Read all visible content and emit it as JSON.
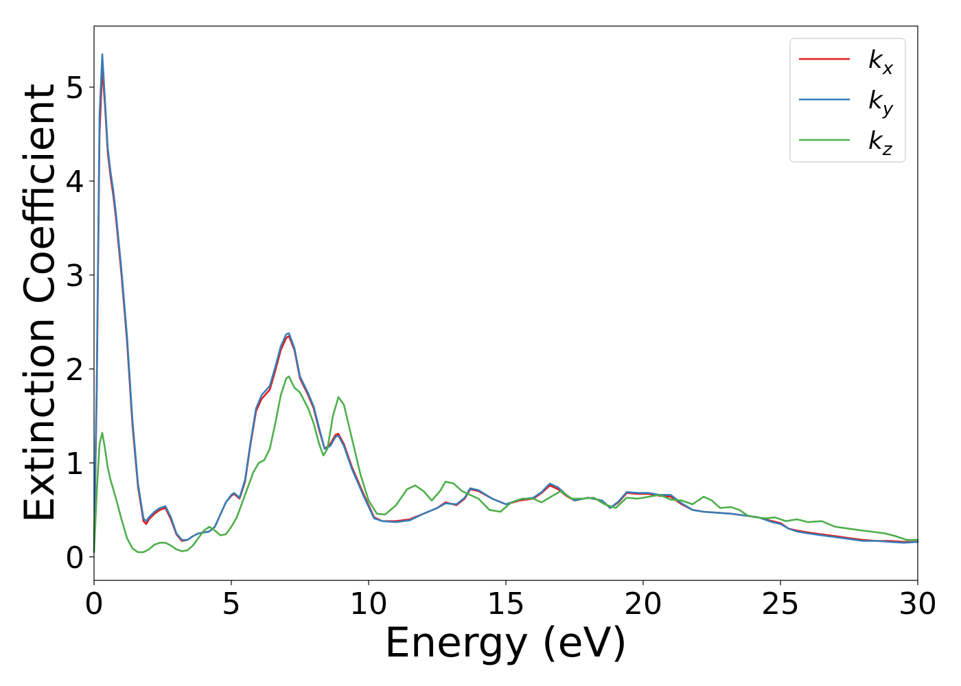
{
  "chart_data": {
    "type": "line",
    "title": "",
    "xlabel": "Energy (eV)",
    "ylabel": "Extinction Coefficient",
    "xlim": [
      0,
      30
    ],
    "ylim": [
      -0.25,
      5.65
    ],
    "xticks": [
      0,
      5,
      10,
      15,
      20,
      25,
      30
    ],
    "yticks": [
      0,
      1,
      2,
      3,
      4,
      5
    ],
    "grid": false,
    "legend_position": "top-right",
    "series": [
      {
        "name": "k_x",
        "label_main": "k",
        "label_sub": "x",
        "color": "#e41a1c",
        "x": [
          0,
          0.1,
          0.2,
          0.3,
          0.4,
          0.5,
          0.6,
          0.7,
          0.8,
          0.9,
          1.0,
          1.2,
          1.4,
          1.6,
          1.8,
          1.9,
          2.0,
          2.2,
          2.4,
          2.6,
          2.8,
          3.0,
          3.2,
          3.4,
          3.6,
          3.8,
          4.0,
          4.2,
          4.4,
          4.6,
          4.8,
          5.0,
          5.1,
          5.3,
          5.5,
          5.7,
          5.9,
          6.1,
          6.4,
          6.6,
          6.8,
          7.0,
          7.1,
          7.3,
          7.5,
          7.8,
          8.0,
          8.2,
          8.4,
          8.6,
          8.8,
          8.9,
          9.1,
          9.4,
          9.8,
          10.2,
          10.5,
          11.0,
          11.5,
          12.0,
          12.5,
          12.8,
          13.2,
          13.5,
          13.7,
          14.0,
          14.5,
          15.0,
          15.5,
          16.0,
          16.3,
          16.6,
          16.9,
          17.2,
          17.5,
          18.0,
          18.5,
          18.8,
          19.1,
          19.4,
          19.8,
          20.2,
          20.6,
          21.0,
          21.4,
          21.8,
          22.2,
          22.7,
          23.2,
          23.7,
          24.2,
          24.7,
          25.0,
          25.3,
          25.6,
          26.0,
          26.5,
          27.0,
          27.5,
          28.0,
          28.5,
          29.0,
          29.5,
          30.0
        ],
        "y": [
          0.05,
          1.8,
          4.5,
          5.2,
          4.8,
          4.3,
          4.05,
          3.85,
          3.6,
          3.3,
          3.0,
          2.3,
          1.4,
          0.75,
          0.38,
          0.35,
          0.4,
          0.46,
          0.5,
          0.52,
          0.4,
          0.24,
          0.17,
          0.18,
          0.22,
          0.25,
          0.26,
          0.27,
          0.32,
          0.45,
          0.58,
          0.65,
          0.67,
          0.62,
          0.8,
          1.2,
          1.55,
          1.68,
          1.78,
          1.98,
          2.2,
          2.33,
          2.35,
          2.2,
          1.9,
          1.72,
          1.58,
          1.35,
          1.15,
          1.2,
          1.3,
          1.31,
          1.2,
          0.95,
          0.68,
          0.42,
          0.38,
          0.38,
          0.4,
          0.46,
          0.52,
          0.58,
          0.55,
          0.62,
          0.72,
          0.7,
          0.62,
          0.56,
          0.6,
          0.62,
          0.68,
          0.76,
          0.72,
          0.65,
          0.6,
          0.63,
          0.6,
          0.52,
          0.58,
          0.68,
          0.67,
          0.67,
          0.65,
          0.64,
          0.56,
          0.5,
          0.48,
          0.47,
          0.46,
          0.44,
          0.42,
          0.38,
          0.36,
          0.3,
          0.28,
          0.26,
          0.24,
          0.22,
          0.2,
          0.18,
          0.17,
          0.17,
          0.16,
          0.16
        ]
      },
      {
        "name": "k_y",
        "label_main": "k",
        "label_sub": "y",
        "color": "#377eb8",
        "x": [
          0,
          0.1,
          0.2,
          0.3,
          0.4,
          0.5,
          0.6,
          0.7,
          0.8,
          0.9,
          1.0,
          1.2,
          1.4,
          1.6,
          1.8,
          1.9,
          2.0,
          2.2,
          2.4,
          2.6,
          2.8,
          3.0,
          3.2,
          3.4,
          3.6,
          3.8,
          4.0,
          4.2,
          4.4,
          4.6,
          4.8,
          5.0,
          5.1,
          5.3,
          5.5,
          5.7,
          5.9,
          6.1,
          6.4,
          6.6,
          6.8,
          7.0,
          7.1,
          7.3,
          7.5,
          7.8,
          8.0,
          8.2,
          8.4,
          8.6,
          8.8,
          8.9,
          9.1,
          9.4,
          9.8,
          10.2,
          10.5,
          11.0,
          11.5,
          12.0,
          12.5,
          12.8,
          13.2,
          13.5,
          13.7,
          14.0,
          14.5,
          15.0,
          15.5,
          16.0,
          16.3,
          16.6,
          16.9,
          17.2,
          17.5,
          18.0,
          18.5,
          18.8,
          19.1,
          19.4,
          19.8,
          20.2,
          20.6,
          21.0,
          21.4,
          21.8,
          22.2,
          22.7,
          23.2,
          23.7,
          24.2,
          24.7,
          25.0,
          25.3,
          25.6,
          26.0,
          26.5,
          27.0,
          27.5,
          28.0,
          28.5,
          29.0,
          29.5,
          30.0
        ],
        "y": [
          0.05,
          1.9,
          4.7,
          5.35,
          4.85,
          4.35,
          4.1,
          3.9,
          3.65,
          3.35,
          3.05,
          2.35,
          1.45,
          0.78,
          0.41,
          0.38,
          0.42,
          0.48,
          0.52,
          0.54,
          0.42,
          0.25,
          0.18,
          0.18,
          0.22,
          0.25,
          0.26,
          0.27,
          0.32,
          0.45,
          0.58,
          0.66,
          0.68,
          0.63,
          0.82,
          1.22,
          1.58,
          1.72,
          1.82,
          2.02,
          2.24,
          2.37,
          2.38,
          2.22,
          1.92,
          1.74,
          1.6,
          1.37,
          1.15,
          1.18,
          1.28,
          1.29,
          1.18,
          0.93,
          0.66,
          0.41,
          0.38,
          0.37,
          0.39,
          0.46,
          0.52,
          0.57,
          0.56,
          0.63,
          0.73,
          0.71,
          0.62,
          0.56,
          0.61,
          0.63,
          0.69,
          0.78,
          0.74,
          0.66,
          0.6,
          0.63,
          0.6,
          0.52,
          0.59,
          0.69,
          0.68,
          0.68,
          0.66,
          0.66,
          0.57,
          0.5,
          0.48,
          0.47,
          0.46,
          0.44,
          0.42,
          0.37,
          0.35,
          0.3,
          0.27,
          0.25,
          0.23,
          0.21,
          0.19,
          0.17,
          0.17,
          0.16,
          0.15,
          0.16
        ]
      },
      {
        "name": "k_z",
        "label_main": "k",
        "label_sub": "z",
        "color": "#4daf4a",
        "x": [
          0,
          0.1,
          0.2,
          0.3,
          0.4,
          0.5,
          0.6,
          0.8,
          1.0,
          1.2,
          1.4,
          1.6,
          1.8,
          2.0,
          2.2,
          2.4,
          2.6,
          2.8,
          3.0,
          3.2,
          3.4,
          3.6,
          3.8,
          4.0,
          4.2,
          4.4,
          4.6,
          4.8,
          5.0,
          5.2,
          5.4,
          5.6,
          5.8,
          6.0,
          6.2,
          6.4,
          6.6,
          6.8,
          7.0,
          7.1,
          7.3,
          7.5,
          7.8,
          8.0,
          8.2,
          8.35,
          8.5,
          8.7,
          8.9,
          9.1,
          9.4,
          9.7,
          10.0,
          10.3,
          10.6,
          11.0,
          11.4,
          11.7,
          12.0,
          12.3,
          12.6,
          12.8,
          13.1,
          13.4,
          13.7,
          14.0,
          14.4,
          14.8,
          15.2,
          15.6,
          16.0,
          16.3,
          16.7,
          17.0,
          17.4,
          17.8,
          18.2,
          18.6,
          19.0,
          19.4,
          19.8,
          20.2,
          20.6,
          21.0,
          21.4,
          21.8,
          22.2,
          22.5,
          22.8,
          23.2,
          23.5,
          23.8,
          24.1,
          24.5,
          24.8,
          25.2,
          25.6,
          26.0,
          26.5,
          27.0,
          27.5,
          28.0,
          28.8,
          29.2,
          29.6,
          30.0
        ],
        "y": [
          0.05,
          0.7,
          1.2,
          1.32,
          1.15,
          0.95,
          0.82,
          0.62,
          0.4,
          0.2,
          0.09,
          0.05,
          0.05,
          0.08,
          0.13,
          0.15,
          0.15,
          0.12,
          0.08,
          0.06,
          0.07,
          0.12,
          0.2,
          0.28,
          0.32,
          0.28,
          0.23,
          0.24,
          0.32,
          0.42,
          0.58,
          0.74,
          0.9,
          1.0,
          1.03,
          1.15,
          1.42,
          1.72,
          1.9,
          1.92,
          1.8,
          1.75,
          1.58,
          1.42,
          1.2,
          1.08,
          1.15,
          1.5,
          1.7,
          1.62,
          1.25,
          0.88,
          0.6,
          0.46,
          0.45,
          0.55,
          0.72,
          0.76,
          0.7,
          0.6,
          0.7,
          0.8,
          0.78,
          0.7,
          0.66,
          0.62,
          0.5,
          0.48,
          0.58,
          0.62,
          0.62,
          0.58,
          0.65,
          0.7,
          0.62,
          0.62,
          0.63,
          0.56,
          0.52,
          0.63,
          0.62,
          0.64,
          0.66,
          0.61,
          0.6,
          0.56,
          0.64,
          0.6,
          0.52,
          0.53,
          0.5,
          0.44,
          0.42,
          0.41,
          0.42,
          0.38,
          0.4,
          0.37,
          0.38,
          0.32,
          0.3,
          0.28,
          0.25,
          0.22,
          0.18,
          0.18
        ]
      }
    ]
  }
}
